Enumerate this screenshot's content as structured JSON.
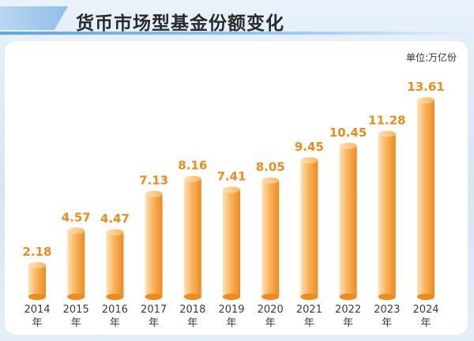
{
  "page": {
    "title": "货币市场型基金份额变化",
    "unit": "单位:万亿份"
  },
  "colors": {
    "bar_light": "#fde3b8",
    "bar_mid": "#f9b45e",
    "bar_dark": "#ee8a1f",
    "value_text": "#ef8a1c",
    "accent_blue": "#5ea6e0"
  },
  "chart_data": {
    "type": "bar",
    "title": "货币市场型基金份额变化",
    "unit": "单位:万亿份",
    "categories": [
      "2014\n年",
      "2015\n年",
      "2016\n年",
      "2017\n年",
      "2018\n年",
      "2019\n年",
      "2020\n年",
      "2021\n年",
      "2022\n年",
      "2023\n年",
      "2024\n年"
    ],
    "values": [
      2.18,
      4.57,
      4.47,
      7.13,
      8.16,
      7.41,
      8.05,
      9.45,
      10.45,
      11.28,
      13.61
    ],
    "value_labels": [
      "2.18",
      "4.57",
      "4.47",
      "7.13",
      "8.16",
      "7.41",
      "8.05",
      "9.45",
      "10.45",
      "11.28",
      "13.61"
    ],
    "ylim": [
      0,
      15
    ],
    "grid": false,
    "legend": "none"
  }
}
